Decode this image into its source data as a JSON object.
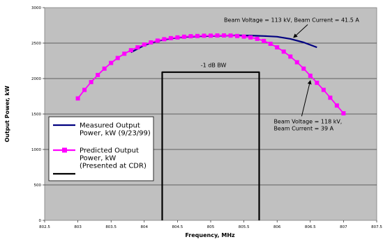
{
  "chart_data": {
    "type": "line",
    "xlabel": "Frequency, MHz",
    "ylabel": "Output Power, kW",
    "xlim": [
      802.5,
      807.5
    ],
    "ylim": [
      0,
      3000
    ],
    "x_ticks": [
      802.5,
      803,
      803.5,
      804,
      804.5,
      805,
      805.5,
      806,
      806.5,
      807,
      807.5
    ],
    "x_tick_labels": [
      "802.5",
      "803",
      "803.5",
      "804",
      "804.5",
      "805",
      "805.5",
      "806",
      "806.5",
      "807",
      "807.5"
    ],
    "y_ticks": [
      0,
      500,
      1000,
      1500,
      2000,
      2500,
      3000
    ],
    "y_tick_labels": [
      "0",
      "500",
      "1000",
      "1500",
      "2000",
      "2500",
      "3000"
    ],
    "grid": "horizontal",
    "plot_background": "#c0c0c0",
    "legend_position": "left-middle",
    "series": [
      {
        "name": "Measured Output Power, kW (9/23/99)",
        "color": "#000080",
        "marker": "none",
        "x": [
          803.8,
          804.0,
          804.2,
          804.4,
          804.6,
          804.8,
          805.0,
          805.2,
          805.4,
          805.6,
          805.8,
          806.0,
          806.2,
          806.4,
          806.6
        ],
        "y": [
          2370,
          2470,
          2530,
          2565,
          2585,
          2595,
          2600,
          2605,
          2608,
          2607,
          2600,
          2590,
          2560,
          2510,
          2440
        ]
      },
      {
        "name": "Predicted Output Power, kW (Presented at CDR)",
        "color": "#ff00ff",
        "marker": "square",
        "x": [
          803.0,
          803.1,
          803.2,
          803.3,
          803.4,
          803.5,
          803.6,
          803.7,
          803.8,
          803.9,
          804.0,
          804.1,
          804.2,
          804.3,
          804.4,
          804.5,
          804.6,
          804.7,
          804.8,
          804.9,
          805.0,
          805.1,
          805.2,
          805.3,
          805.4,
          805.5,
          805.6,
          805.7,
          805.8,
          805.9,
          806.0,
          806.1,
          806.2,
          806.3,
          806.4,
          806.5,
          806.6,
          806.7,
          806.8,
          806.9,
          807.0
        ],
        "y": [
          1720,
          1840,
          1950,
          2050,
          2140,
          2220,
          2290,
          2350,
          2400,
          2440,
          2480,
          2510,
          2535,
          2555,
          2570,
          2580,
          2590,
          2597,
          2600,
          2604,
          2605,
          2607,
          2608,
          2606,
          2600,
          2592,
          2580,
          2560,
          2530,
          2490,
          2440,
          2380,
          2310,
          2230,
          2140,
          2040,
          1940,
          1840,
          1730,
          1620,
          1510
        ]
      },
      {
        "name": "",
        "color": "#000000",
        "marker": "none",
        "x": [
          804.27,
          804.27,
          805.73,
          805.73
        ],
        "y": [
          0,
          2090,
          2090,
          0
        ]
      }
    ],
    "legend": [
      {
        "lines": [
          "Measured Output",
          "Power, kW (9/23/99)"
        ],
        "color": "#000080",
        "marker": "none"
      },
      {
        "lines": [
          "Predicted Output",
          "Power, kW",
          "(Presented at CDR)"
        ],
        "color": "#ff00ff",
        "marker": "square"
      },
      {
        "lines": [
          ""
        ],
        "color": "#000000",
        "marker": "none"
      }
    ],
    "annotations": [
      {
        "lines": [
          "Beam Voltage = 113 kV, Beam Current = 41.5 A"
        ],
        "x": 805.2,
        "y": 2800,
        "arrow_to": [
          806.25,
          2580
        ]
      },
      {
        "lines": [
          "-1 dB BW"
        ],
        "x": 804.85,
        "y": 2160
      },
      {
        "lines": [
          "Beam Voltage = 118 kV,",
          "Beam Current = 39 A"
        ],
        "x": 805.95,
        "y": 1370,
        "arrow_to": [
          806.5,
          1970
        ]
      }
    ]
  }
}
